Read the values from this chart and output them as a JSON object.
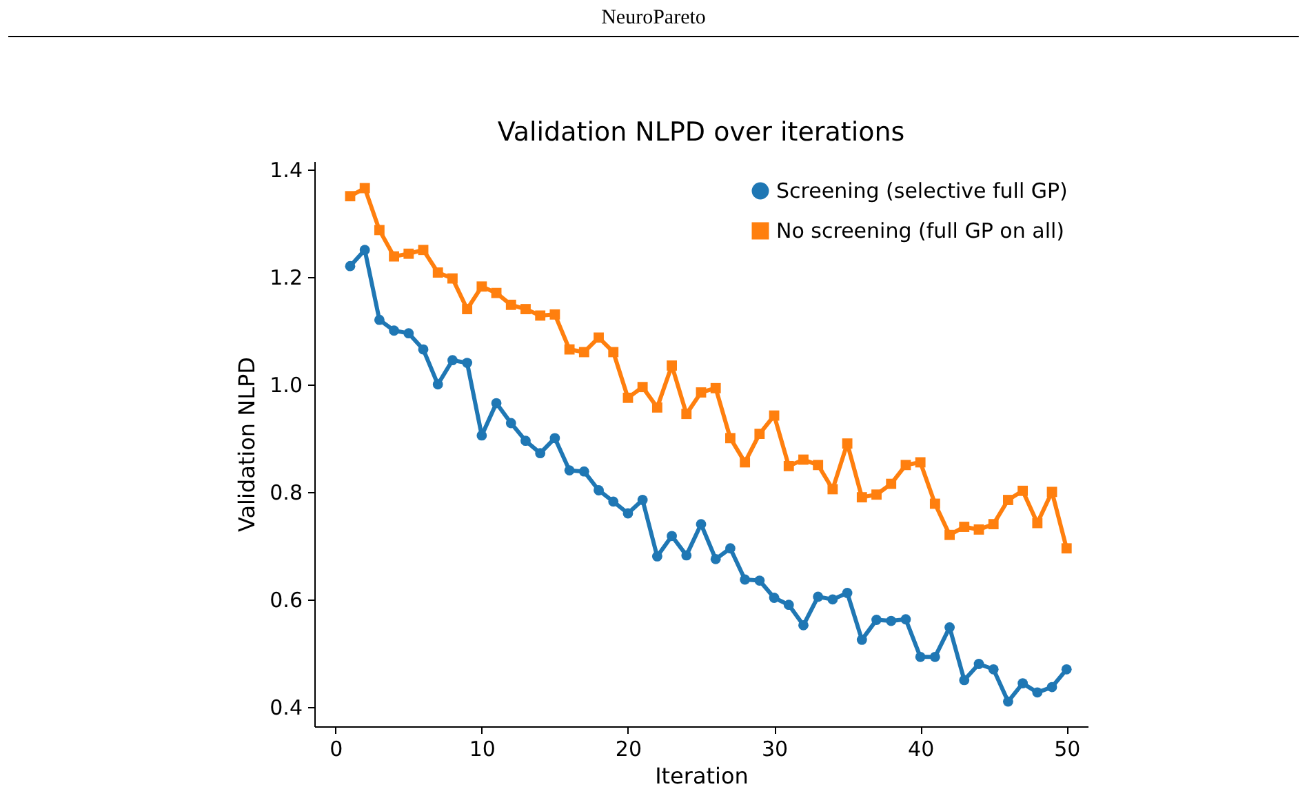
{
  "chart_data": {
    "type": "line",
    "title": "Validation NLPD over iterations",
    "xlabel": "Iteration",
    "ylabel": "Validation NLPD",
    "annotations": [
      "NeuroPareto"
    ],
    "x": [
      1,
      2,
      3,
      4,
      5,
      6,
      7,
      8,
      9,
      10,
      11,
      12,
      13,
      14,
      15,
      16,
      17,
      18,
      19,
      20,
      21,
      22,
      23,
      24,
      25,
      26,
      27,
      28,
      29,
      30,
      31,
      32,
      33,
      34,
      35,
      36,
      37,
      38,
      39,
      40,
      41,
      42,
      43,
      44,
      45,
      46,
      47,
      48,
      49,
      50
    ],
    "series": [
      {
        "name": "Screening (selective full GP)",
        "color": "#1f77b4",
        "marker": "circle",
        "values": [
          1.22,
          1.25,
          1.12,
          1.1,
          1.095,
          1.065,
          1.0,
          1.045,
          1.04,
          0.905,
          0.965,
          0.928,
          0.895,
          0.872,
          0.9,
          0.84,
          0.838,
          0.803,
          0.782,
          0.76,
          0.785,
          0.68,
          0.718,
          0.682,
          0.74,
          0.675,
          0.695,
          0.637,
          0.635,
          0.603,
          0.59,
          0.552,
          0.605,
          0.6,
          0.612,
          0.525,
          0.562,
          0.56,
          0.563,
          0.493,
          0.493,
          0.548,
          0.45,
          0.48,
          0.47,
          0.41,
          0.444,
          0.427,
          0.437,
          0.47
        ]
      },
      {
        "name": "No screening (full GP on all)",
        "color": "#ff7f0e",
        "marker": "square",
        "values": [
          1.35,
          1.365,
          1.287,
          1.238,
          1.243,
          1.25,
          1.208,
          1.197,
          1.14,
          1.182,
          1.17,
          1.148,
          1.14,
          1.128,
          1.13,
          1.065,
          1.06,
          1.087,
          1.06,
          0.975,
          0.995,
          0.957,
          1.035,
          0.945,
          0.985,
          0.993,
          0.9,
          0.855,
          0.908,
          0.942,
          0.848,
          0.86,
          0.85,
          0.805,
          0.89,
          0.79,
          0.795,
          0.815,
          0.85,
          0.855,
          0.778,
          0.72,
          0.735,
          0.73,
          0.74,
          0.785,
          0.802,
          0.742,
          0.8,
          0.695
        ]
      }
    ],
    "xlim": [
      -1.45,
      51.45
    ],
    "ylim": [
      0.364,
      1.415
    ],
    "xticks": [
      0,
      10,
      20,
      30,
      40,
      50
    ],
    "yticks": [
      0.4,
      0.6,
      0.8,
      {
        "value": 1,
        "label": "1.0"
      },
      1.2,
      1.4
    ],
    "grid": false,
    "legend": "top right",
    "line_style": "solid"
  }
}
